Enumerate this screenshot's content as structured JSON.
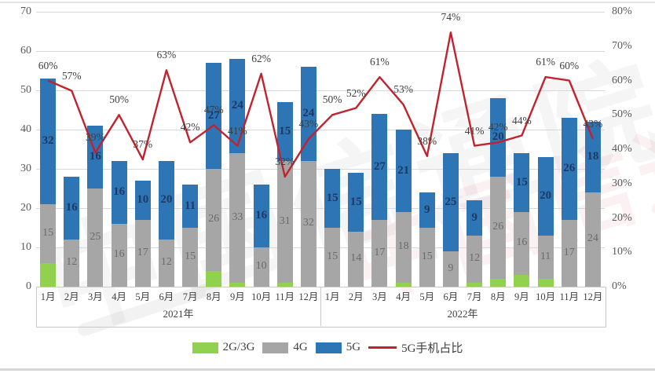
{
  "watermark": {
    "text": "中国信通院"
  },
  "chart_data": {
    "type": "bar+line",
    "title": "",
    "months": [
      "1月",
      "2月",
      "3月",
      "4月",
      "5月",
      "6月",
      "7月",
      "8月",
      "9月",
      "10月",
      "11月",
      "12月"
    ],
    "year_groups": [
      "2021年",
      "2022年"
    ],
    "left_axis": {
      "min": 0,
      "max": 70,
      "step": 10,
      "ticks": [
        "0",
        "10",
        "20",
        "30",
        "40",
        "50",
        "60",
        "70"
      ]
    },
    "right_axis": {
      "min": 0,
      "max": 80,
      "step": 10,
      "ticks": [
        "0%",
        "10%",
        "20%",
        "30%",
        "40%",
        "50%",
        "60%",
        "70%",
        "80%"
      ]
    },
    "grid": true,
    "legend_position": "bottom",
    "series": [
      {
        "name": "2G/3G",
        "slug": "2g-3g",
        "kind": "bar",
        "color": "#92d050",
        "labels_shown": false,
        "values": [
          6,
          0,
          0,
          0,
          0,
          0,
          0,
          4,
          1,
          0,
          1,
          0,
          0,
          0,
          0,
          1,
          0,
          0,
          1,
          2,
          3,
          2,
          0,
          0
        ]
      },
      {
        "name": "4G",
        "slug": "4g",
        "kind": "bar",
        "color": "#a6a6a6",
        "label_color": "#6b6b6b",
        "values": [
          15,
          12,
          25,
          16,
          17,
          12,
          15,
          26,
          33,
          10,
          31,
          32,
          15,
          14,
          17,
          18,
          15,
          9,
          12,
          26,
          16,
          11,
          17,
          24
        ]
      },
      {
        "name": "5G",
        "slug": "5g",
        "kind": "bar",
        "color": "#2e75b6",
        "label_color": "#1f3864",
        "values": [
          32,
          16,
          16,
          16,
          10,
          20,
          11,
          27,
          24,
          16,
          15,
          24,
          15,
          15,
          27,
          21,
          9,
          25,
          9,
          20,
          15,
          20,
          26,
          18
        ]
      },
      {
        "name": "5G手机占比",
        "slug": "5g-share",
        "kind": "line",
        "color": "#c0232e",
        "axis": "right",
        "unit": "%",
        "values": [
          60,
          57,
          39,
          50,
          37,
          63,
          42,
          47,
          41,
          62,
          32,
          43,
          50,
          52,
          61,
          53,
          38,
          74,
          41,
          42,
          44,
          61,
          60,
          43
        ]
      }
    ]
  }
}
